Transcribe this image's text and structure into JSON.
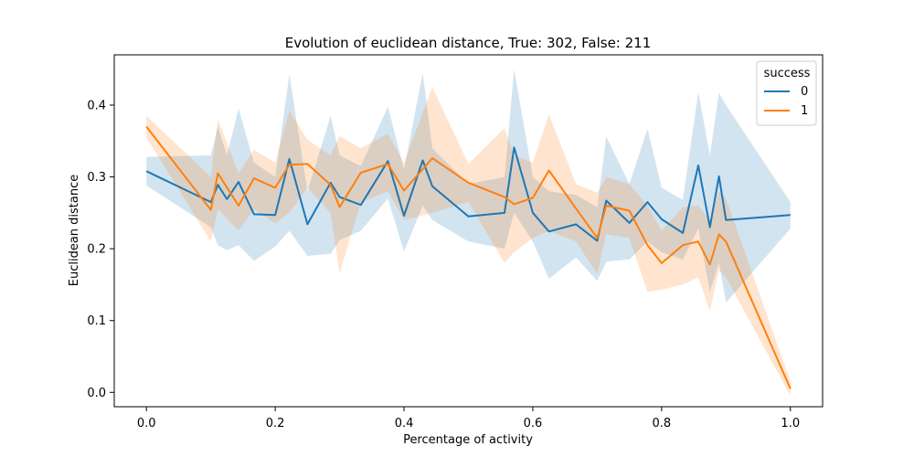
{
  "chart_data": {
    "type": "line",
    "title": "Evolution of euclidean distance, True: 302, False: 211",
    "xlabel": "Percentage of activity",
    "ylabel": "Euclidean distance",
    "xlim": [
      -0.05,
      1.05
    ],
    "ylim": [
      -0.02,
      0.47
    ],
    "xticks": [
      0.0,
      0.2,
      0.4,
      0.6,
      0.8,
      1.0
    ],
    "xtick_labels": [
      "0.0",
      "0.2",
      "0.4",
      "0.6",
      "0.8",
      "1.0"
    ],
    "yticks": [
      0.0,
      0.1,
      0.2,
      0.3,
      0.4
    ],
    "ytick_labels": [
      "0.0",
      "0.1",
      "0.2",
      "0.3",
      "0.4"
    ],
    "grid": false,
    "legend": {
      "title": "success",
      "placement": "top-right"
    },
    "series": [
      {
        "name": "0",
        "color": "#1f77b4",
        "points": [
          [
            0.0,
            0.308,
            0.288,
            0.328
          ],
          [
            0.1,
            0.265,
            0.23,
            0.33
          ],
          [
            0.111,
            0.289,
            0.205,
            0.37
          ],
          [
            0.125,
            0.269,
            0.198,
            0.33
          ],
          [
            0.143,
            0.293,
            0.205,
            0.395
          ],
          [
            0.167,
            0.248,
            0.183,
            0.32
          ],
          [
            0.2,
            0.247,
            0.203,
            0.3
          ],
          [
            0.222,
            0.325,
            0.225,
            0.443
          ],
          [
            0.25,
            0.234,
            0.19,
            0.28
          ],
          [
            0.286,
            0.292,
            0.193,
            0.385
          ],
          [
            0.3,
            0.272,
            0.212,
            0.33
          ],
          [
            0.333,
            0.261,
            0.225,
            0.315
          ],
          [
            0.375,
            0.322,
            0.27,
            0.398
          ],
          [
            0.4,
            0.246,
            0.196,
            0.31
          ],
          [
            0.429,
            0.323,
            0.26,
            0.445
          ],
          [
            0.444,
            0.287,
            0.24,
            0.34
          ],
          [
            0.5,
            0.245,
            0.21,
            0.29
          ],
          [
            0.556,
            0.25,
            0.2,
            0.3
          ],
          [
            0.571,
            0.341,
            0.25,
            0.45
          ],
          [
            0.6,
            0.25,
            0.21,
            0.3
          ],
          [
            0.625,
            0.224,
            0.158,
            0.28
          ],
          [
            0.667,
            0.234,
            0.188,
            0.275
          ],
          [
            0.7,
            0.211,
            0.155,
            0.258
          ],
          [
            0.714,
            0.267,
            0.182,
            0.356
          ],
          [
            0.75,
            0.236,
            0.185,
            0.29
          ],
          [
            0.778,
            0.265,
            0.21,
            0.367
          ],
          [
            0.8,
            0.241,
            0.195,
            0.285
          ],
          [
            0.833,
            0.222,
            0.185,
            0.268
          ],
          [
            0.857,
            0.316,
            0.228,
            0.418
          ],
          [
            0.875,
            0.23,
            0.14,
            0.33
          ],
          [
            0.889,
            0.301,
            0.18,
            0.417
          ],
          [
            0.9,
            0.24,
            0.125,
            0.4
          ],
          [
            1.0,
            0.247,
            0.228,
            0.265
          ]
        ]
      },
      {
        "name": "1",
        "color": "#ff7f0e",
        "points": [
          [
            0.0,
            0.37,
            0.355,
            0.385
          ],
          [
            0.1,
            0.254,
            0.21,
            0.3
          ],
          [
            0.111,
            0.305,
            0.255,
            0.38
          ],
          [
            0.143,
            0.26,
            0.225,
            0.305
          ],
          [
            0.167,
            0.298,
            0.255,
            0.338
          ],
          [
            0.2,
            0.285,
            0.235,
            0.32
          ],
          [
            0.222,
            0.317,
            0.25,
            0.392
          ],
          [
            0.25,
            0.318,
            0.285,
            0.352
          ],
          [
            0.286,
            0.289,
            0.25,
            0.33
          ],
          [
            0.3,
            0.258,
            0.166,
            0.357
          ],
          [
            0.333,
            0.306,
            0.265,
            0.34
          ],
          [
            0.375,
            0.318,
            0.28,
            0.36
          ],
          [
            0.4,
            0.281,
            0.24,
            0.32
          ],
          [
            0.444,
            0.326,
            0.25,
            0.425
          ],
          [
            0.5,
            0.292,
            0.265,
            0.318
          ],
          [
            0.556,
            0.272,
            0.18,
            0.368
          ],
          [
            0.571,
            0.262,
            0.195,
            0.33
          ],
          [
            0.6,
            0.271,
            0.215,
            0.32
          ],
          [
            0.625,
            0.309,
            0.225,
            0.387
          ],
          [
            0.667,
            0.256,
            0.21,
            0.29
          ],
          [
            0.7,
            0.215,
            0.165,
            0.278
          ],
          [
            0.714,
            0.26,
            0.22,
            0.3
          ],
          [
            0.75,
            0.253,
            0.215,
            0.29
          ],
          [
            0.778,
            0.205,
            0.14,
            0.26
          ],
          [
            0.8,
            0.18,
            0.143,
            0.225
          ],
          [
            0.833,
            0.205,
            0.15,
            0.258
          ],
          [
            0.857,
            0.21,
            0.16,
            0.26
          ],
          [
            0.875,
            0.178,
            0.113,
            0.24
          ],
          [
            0.889,
            0.22,
            0.17,
            0.28
          ],
          [
            0.9,
            0.21,
            0.16,
            0.27
          ],
          [
            1.0,
            0.005,
            -0.005,
            0.015
          ]
        ]
      }
    ]
  }
}
